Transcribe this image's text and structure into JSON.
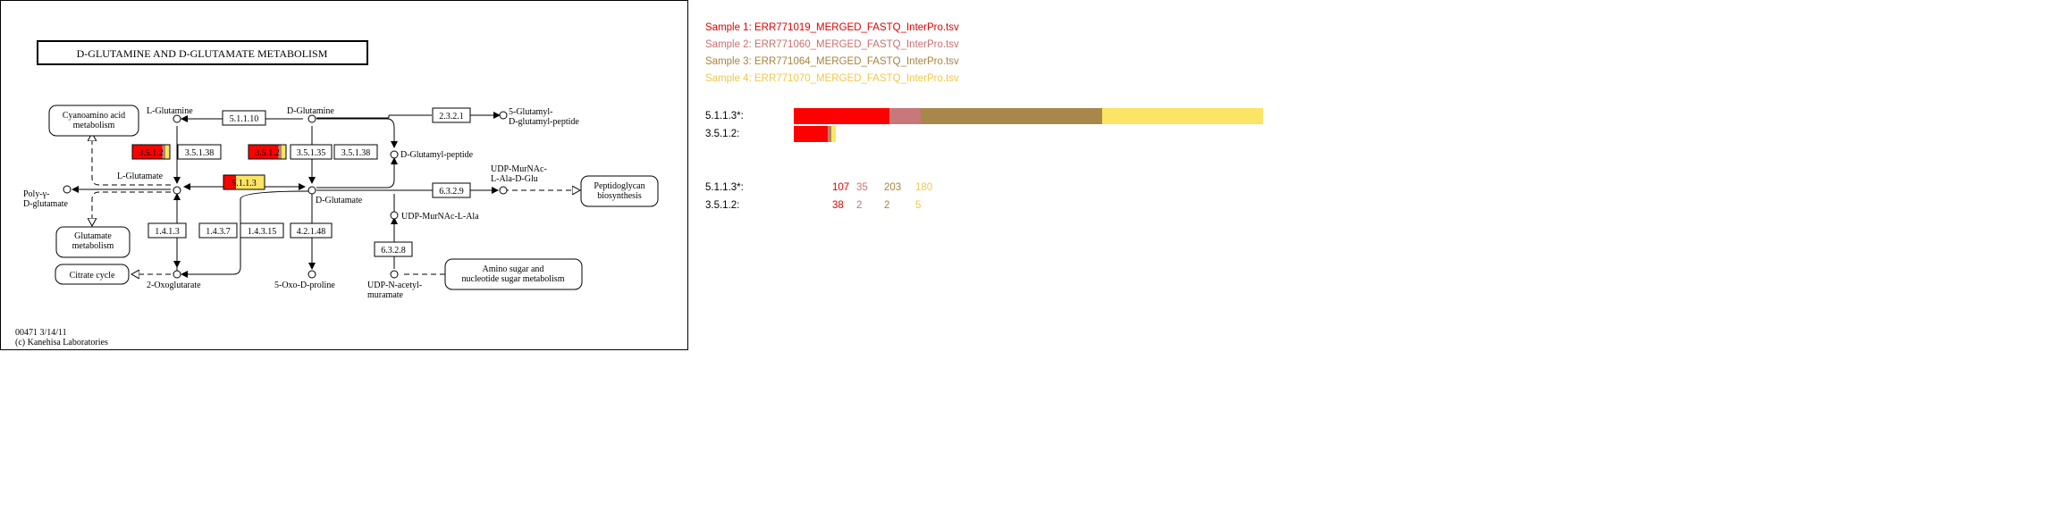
{
  "pathway": {
    "title": "D-GLUTAMINE AND D-GLUTAMATE METABOLISM",
    "footer_line1": "00471 3/14/11",
    "footer_line2": "(c) Kanehisa Laboratories",
    "compounds": {
      "l_glutamine": "L-Glutamine",
      "d_glutamine": "D-Glutamine",
      "l_glutamate": "L-Glutamate",
      "d_glutamate": "D-Glutamate",
      "polyglutamate_1": "Poly-γ-",
      "polyglutamate_2": "D-glutamate",
      "oxoglutarate": "2-Oxoglutarate",
      "oxoproline": "5-Oxo-D-proline",
      "glutamyl_peptide_1": "5-Glutamyl-",
      "glutamyl_peptide_2": "D-glutamyl-peptide",
      "d_glutamyl_peptide": "D-Glutamyl-peptide",
      "udp_murnac_ala_glu_1": "UDP-MurNAc-",
      "udp_murnac_ala_glu_2": "L-Ala-D-Glu",
      "udp_murnac_ala": "UDP-MurNAc-L-Ala",
      "udp_acetyl_1": "UDP-N-acetyl-",
      "udp_acetyl_2": "muramate"
    },
    "maps": {
      "cyanoamino_1": "Cyanoamino acid",
      "cyanoamino_2": "metabolism",
      "glutamate_1": "Glutamate",
      "glutamate_2": "metabolism",
      "citrate": "Citrate cycle",
      "peptidoglycan_1": "Peptidoglycan",
      "peptidoglycan_2": "biosynthesis",
      "amino_sugar_1": "Amino sugar and",
      "amino_sugar_2": "nucleotide sugar metabolism"
    },
    "enzymes": {
      "e1": "5.1.1.10",
      "e2": "2.3.2.1",
      "e3": "3.5.1.2",
      "e4": "3.5.1.38",
      "e5": "3.5.1.2",
      "e6": "3.5.1.35",
      "e7": "3.5.1.38",
      "e8": "5.1.1.3",
      "e9": "6.3.2.9",
      "e10": "1.4.1.3",
      "e11": "1.4.3.7",
      "e12": "1.4.3.15",
      "e13": "4.2.1.48",
      "e14": "6.3.2.8"
    }
  },
  "legend": {
    "samples": [
      {
        "label": "Sample 1: ERR771019_MERGED_FASTQ_InterPro.tsv",
        "color": "#e00000"
      },
      {
        "label": "Sample 2: ERR771060_MERGED_FASTQ_InterPro.tsv",
        "color": "#c87070"
      },
      {
        "label": "Sample 3: ERR771064_MERGED_FASTQ_InterPro.tsv",
        "color": "#a8843e"
      },
      {
        "label": "Sample 4: ERR771070_MERGED_FASTQ_InterPro.tsv",
        "color": "#f0c848"
      }
    ]
  },
  "chart_data": {
    "type": "bar",
    "stacked": true,
    "orientation": "horizontal",
    "categories": [
      "5.1.1.3*:",
      "3.5.1.2:"
    ],
    "series": [
      {
        "name": "Sample 1: ERR771019_MERGED_FASTQ_InterPro.tsv",
        "values": [
          107,
          38
        ]
      },
      {
        "name": "Sample 2: ERR771060_MERGED_FASTQ_InterPro.tsv",
        "values": [
          35,
          2
        ]
      },
      {
        "name": "Sample 3: ERR771064_MERGED_FASTQ_InterPro.tsv",
        "values": [
          203,
          2
        ]
      },
      {
        "name": "Sample 4: ERR771070_MERGED_FASTQ_InterPro.tsv",
        "values": [
          180,
          5
        ]
      }
    ],
    "colors": [
      "#ff0000",
      "#c87878",
      "#a8884a",
      "#fce464"
    ]
  }
}
